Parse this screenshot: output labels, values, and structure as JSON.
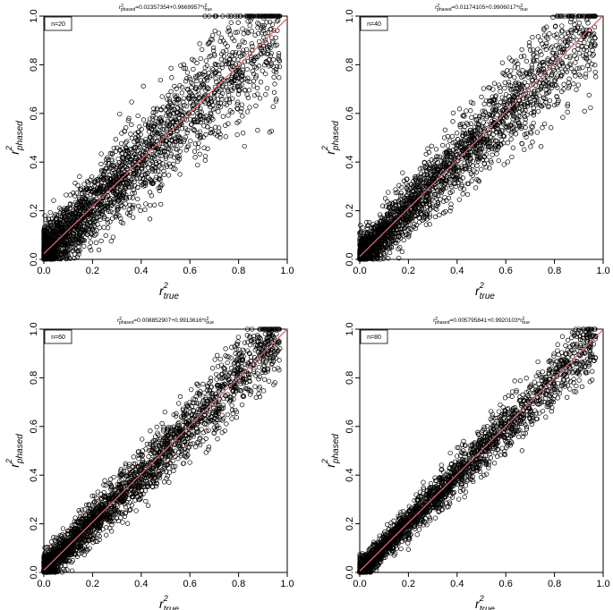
{
  "chart_data": [
    {
      "type": "scatter",
      "title": "r²phased=0.02357354+0.9669957*r²true",
      "equation": {
        "lhs": "r",
        "lhs_sub": "phased",
        "mid": "=0.02357354+0.9669957*",
        "rhs": "r",
        "rhs_sub": "true"
      },
      "n_label": "n=20",
      "xlabel": {
        "base": "r",
        "sup": "2",
        "sub": "true"
      },
      "ylabel": {
        "base": "r",
        "sup": "2",
        "sub": "phased"
      },
      "xlim": [
        0,
        1
      ],
      "ylim": [
        0,
        1
      ],
      "xticks": [
        "0.0",
        "0.2",
        "0.4",
        "0.6",
        "0.8",
        "1.0"
      ],
      "yticks": [
        "0.0",
        "0.2",
        "0.4",
        "0.6",
        "0.8",
        "1.0"
      ],
      "fit_line": {
        "intercept": 0.02357354,
        "slope": 0.9669957,
        "color": "#e06666"
      },
      "scatter": {
        "noise": 0.11,
        "seed": 11,
        "count": 2600,
        "sat_top": 0.9,
        "xscale_jitter": 0.12
      }
    },
    {
      "type": "scatter",
      "title": "r²phased=0.01174105+0.9906017*r²true",
      "equation": {
        "lhs": "r",
        "lhs_sub": "phased",
        "mid": "=0.01174105+0.9906017*",
        "rhs": "r",
        "rhs_sub": "true"
      },
      "n_label": "n=40",
      "xlabel": {
        "base": "r",
        "sup": "2",
        "sub": "true"
      },
      "ylabel": {
        "base": "r",
        "sup": "2",
        "sub": "phased"
      },
      "xlim": [
        0,
        1
      ],
      "ylim": [
        0,
        1
      ],
      "xticks": [
        "0.0",
        "0.2",
        "0.4",
        "0.6",
        "0.8",
        "1.0"
      ],
      "yticks": [
        "0.0",
        "0.2",
        "0.4",
        "0.6",
        "0.8",
        "1.0"
      ],
      "fit_line": {
        "intercept": 0.01174105,
        "slope": 0.9906017,
        "color": "#e06666"
      },
      "scatter": {
        "noise": 0.085,
        "seed": 23,
        "count": 2600,
        "sat_top": 0.96,
        "xscale_jitter": 0.1
      }
    },
    {
      "type": "scatter",
      "title": "r²phased=0.008852907+0.9913616*r²true",
      "equation": {
        "lhs": "r",
        "lhs_sub": "phased",
        "mid": "=0.008852907+0.9913616*",
        "rhs": "r",
        "rhs_sub": "true"
      },
      "n_label": "n=60",
      "xlabel": {
        "base": "r",
        "sup": "2",
        "sub": "true"
      },
      "ylabel": {
        "base": "r",
        "sup": "2",
        "sub": "phased"
      },
      "xlim": [
        0,
        1
      ],
      "ylim": [
        0,
        1
      ],
      "xticks": [
        "0.0",
        "0.2",
        "0.4",
        "0.6",
        "0.8",
        "1.0"
      ],
      "yticks": [
        "0.0",
        "0.2",
        "0.4",
        "0.6",
        "0.8",
        "1.0"
      ],
      "fit_line": {
        "intercept": 0.008852907,
        "slope": 0.9913616,
        "color": "#e06666"
      },
      "scatter": {
        "noise": 0.065,
        "seed": 37,
        "count": 2600,
        "sat_top": 0.98,
        "xscale_jitter": 0.08
      }
    },
    {
      "type": "scatter",
      "title": "r²phased=0.005795841+0.9920103*r²true",
      "equation": {
        "lhs": "r",
        "lhs_sub": "phased",
        "mid": "=0.005795841+0.9920103*",
        "rhs": "r",
        "rhs_sub": "true"
      },
      "n_label": "n=80",
      "xlabel": {
        "base": "r",
        "sup": "2",
        "sub": "true"
      },
      "ylabel": {
        "base": "r",
        "sup": "2",
        "sub": "phased"
      },
      "xlim": [
        0,
        1
      ],
      "ylim": [
        0,
        1
      ],
      "xticks": [
        "0.0",
        "0.2",
        "0.4",
        "0.6",
        "0.8",
        "1.0"
      ],
      "yticks": [
        "0.0",
        "0.2",
        "0.4",
        "0.6",
        "0.8",
        "1.0"
      ],
      "fit_line": {
        "intercept": 0.005795841,
        "slope": 0.9920103,
        "color": "#e06666"
      },
      "scatter": {
        "noise": 0.05,
        "seed": 53,
        "count": 2600,
        "sat_top": 0.99,
        "xscale_jitter": 0.07
      }
    }
  ]
}
